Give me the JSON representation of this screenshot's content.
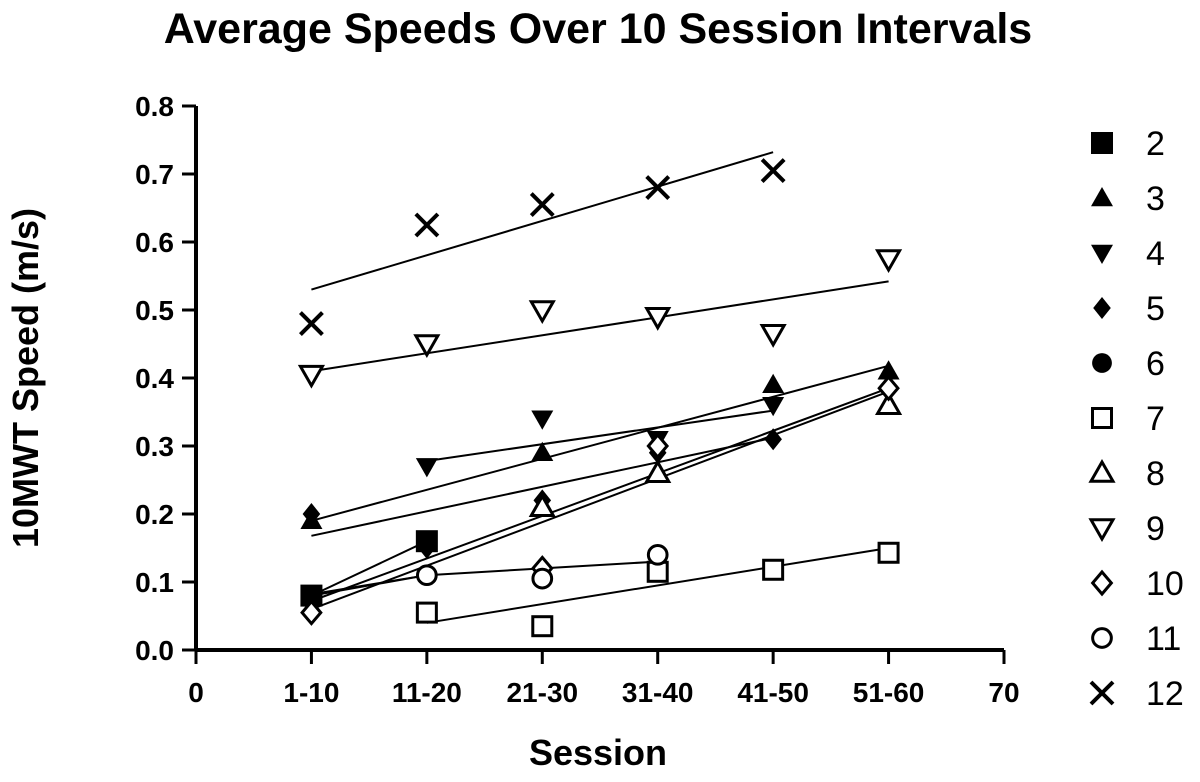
{
  "chart_data": {
    "type": "scatter",
    "title": "Average Speeds Over 10 Session Intervals",
    "xlabel": "Session",
    "ylabel": "10MWT Speed (m/s)",
    "xlim": [
      0,
      70
    ],
    "ylim": [
      0.0,
      0.8
    ],
    "x_ticks": [
      {
        "value": 0,
        "label": "0"
      },
      {
        "value": 10,
        "label": "1-10"
      },
      {
        "value": 20,
        "label": "11-20"
      },
      {
        "value": 30,
        "label": "21-30"
      },
      {
        "value": 40,
        "label": "31-40"
      },
      {
        "value": 50,
        "label": "41-50"
      },
      {
        "value": 60,
        "label": "51-60"
      },
      {
        "value": 70,
        "label": "70"
      }
    ],
    "y_ticks": [
      {
        "value": 0.0,
        "label": "0.0"
      },
      {
        "value": 0.1,
        "label": "0.1"
      },
      {
        "value": 0.2,
        "label": "0.2"
      },
      {
        "value": 0.3,
        "label": "0.3"
      },
      {
        "value": 0.4,
        "label": "0.4"
      },
      {
        "value": 0.5,
        "label": "0.5"
      },
      {
        "value": 0.6,
        "label": "0.6"
      },
      {
        "value": 0.7,
        "label": "0.7"
      },
      {
        "value": 0.8,
        "label": "0.8"
      }
    ],
    "grid": false,
    "legend_position": "right",
    "series": [
      {
        "name": "2",
        "marker": "square-filled",
        "x": [
          10,
          20
        ],
        "y": [
          0.08,
          0.16
        ],
        "fit": [
          [
            10,
            0.08
          ],
          [
            20,
            0.16
          ]
        ]
      },
      {
        "name": "3",
        "marker": "triangle-up-filled",
        "x": [
          10,
          30,
          50,
          60
        ],
        "y": [
          0.19,
          0.29,
          0.39,
          0.41
        ],
        "fit": [
          [
            10,
            0.19
          ],
          [
            60,
            0.418
          ]
        ]
      },
      {
        "name": "4",
        "marker": "triangle-down-filled",
        "x": [
          20,
          30,
          40,
          50
        ],
        "y": [
          0.27,
          0.34,
          0.31,
          0.36
        ],
        "fit": [
          [
            20,
            0.278
          ],
          [
            50,
            0.352
          ]
        ]
      },
      {
        "name": "5",
        "marker": "diamond-filled",
        "x": [
          10,
          20,
          30,
          40,
          50
        ],
        "y": [
          0.2,
          0.15,
          0.22,
          0.29,
          0.31
        ],
        "fit": [
          [
            10,
            0.168
          ],
          [
            50,
            0.312
          ]
        ]
      },
      {
        "name": "6",
        "marker": "circle-filled",
        "x": [
          10,
          20
        ],
        "y": [
          0.08,
          0.11
        ],
        "fit": [
          [
            10,
            0.08
          ],
          [
            20,
            0.11
          ]
        ]
      },
      {
        "name": "7",
        "marker": "square-open",
        "x": [
          20,
          30,
          40,
          50,
          60
        ],
        "y": [
          0.055,
          0.035,
          0.115,
          0.118,
          0.143
        ],
        "fit": [
          [
            20,
            0.04
          ],
          [
            60,
            0.15
          ]
        ]
      },
      {
        "name": "8",
        "marker": "triangle-up-open",
        "x": [
          30,
          40,
          60
        ],
        "y": [
          0.21,
          0.26,
          0.36
        ],
        "fit": [
          [
            10,
            0.06
          ],
          [
            60,
            0.38
          ]
        ]
      },
      {
        "name": "9",
        "marker": "triangle-down-open",
        "x": [
          10,
          20,
          30,
          40,
          50,
          60
        ],
        "y": [
          0.405,
          0.45,
          0.5,
          0.49,
          0.465,
          0.575
        ],
        "fit": [
          [
            10,
            0.41
          ],
          [
            60,
            0.542
          ]
        ]
      },
      {
        "name": "10",
        "marker": "diamond-open",
        "x": [
          10,
          30,
          40,
          60
        ],
        "y": [
          0.055,
          0.12,
          0.3,
          0.385
        ],
        "fit": [
          [
            10,
            0.072
          ],
          [
            60,
            0.385
          ]
        ]
      },
      {
        "name": "11",
        "marker": "circle-open",
        "x": [
          20,
          30,
          40
        ],
        "y": [
          0.11,
          0.105,
          0.14
        ],
        "fit": [
          [
            10,
            0.082
          ],
          [
            20,
            0.11
          ],
          [
            30,
            0.12
          ],
          [
            40,
            0.13
          ]
        ]
      },
      {
        "name": "12",
        "marker": "x",
        "x": [
          10,
          20,
          30,
          40,
          50
        ],
        "y": [
          0.48,
          0.625,
          0.655,
          0.68,
          0.705
        ],
        "fit": [
          [
            10,
            0.53
          ],
          [
            50,
            0.732
          ]
        ]
      }
    ]
  }
}
